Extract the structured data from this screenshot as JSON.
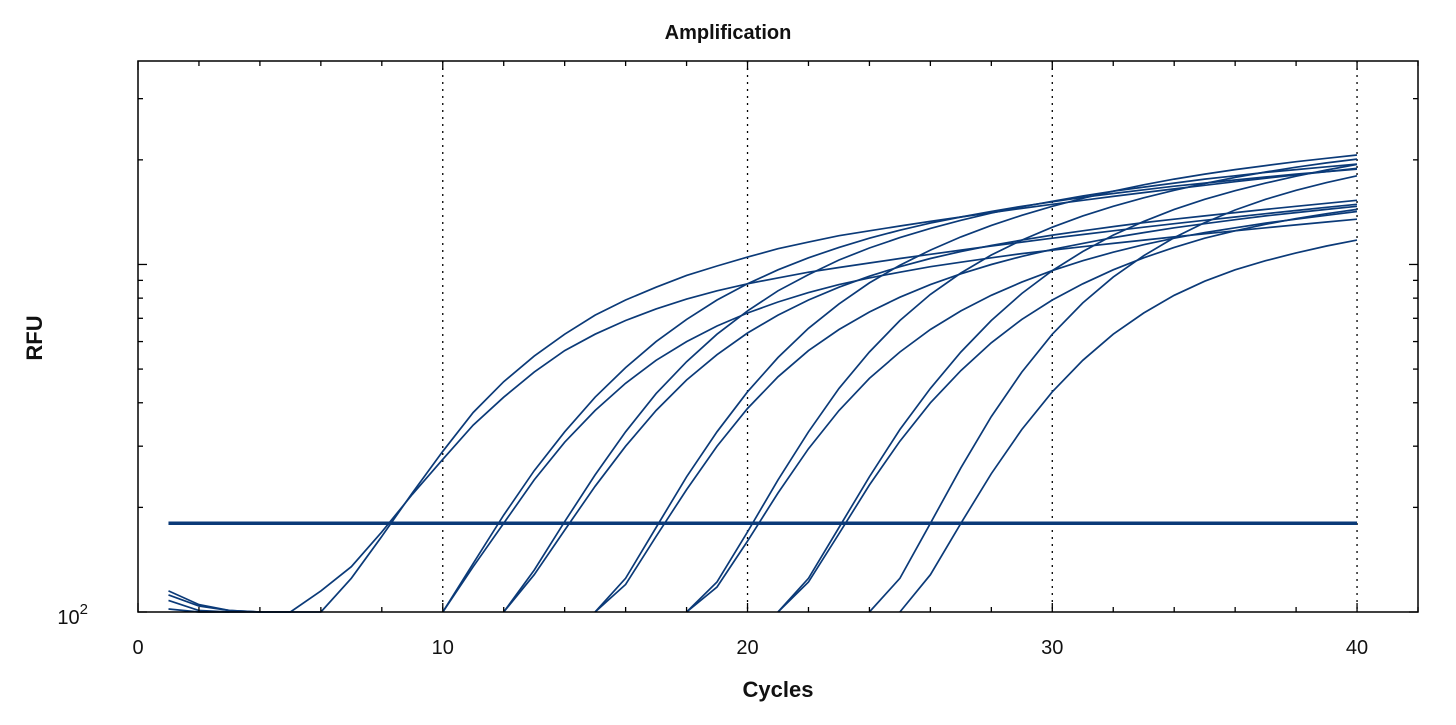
{
  "chart_data": {
    "type": "line",
    "title": "Amplification",
    "xlabel": "Cycles",
    "ylabel": "RFU",
    "xlim": [
      0,
      42
    ],
    "ylim": [
      100,
      3850
    ],
    "y_scale": "log",
    "x_ticks": [
      0,
      10,
      20,
      30,
      40
    ],
    "x_tick_labels": [
      "0",
      "10",
      "20",
      "30",
      "40"
    ],
    "y_tick_label_base": "10",
    "y_tick_label_exp": "2",
    "vertical_grid": "dotted at 10, 20, 30, 40",
    "colors": {
      "curves": "#0b3a78",
      "threshold": "#0b3a78"
    },
    "threshold": {
      "value": 180,
      "x_range": [
        1,
        40
      ]
    },
    "series": [
      {
        "x": [
          1,
          2,
          3,
          4,
          5,
          6,
          7,
          8,
          9,
          10,
          11,
          12,
          13,
          14,
          15,
          16,
          17,
          18,
          19,
          20,
          21,
          22,
          23,
          24,
          25,
          26,
          27,
          28,
          29,
          30,
          31,
          32,
          33,
          34,
          35,
          36,
          37,
          38,
          39,
          40
        ],
        "values": [
          115,
          105,
          101,
          100,
          100,
          115,
          135,
          170,
          218,
          275,
          345,
          415,
          490,
          565,
          630,
          690,
          745,
          795,
          840,
          880,
          915,
          950,
          980,
          1010,
          1040,
          1070,
          1100,
          1130,
          1160,
          1190,
          1220,
          1250,
          1280,
          1310,
          1340,
          1370,
          1400,
          1430,
          1460,
          1490
        ]
      },
      {
        "x": [
          1,
          2,
          3,
          4,
          5,
          6,
          7,
          8,
          9,
          10,
          11,
          12,
          13,
          14,
          15,
          16,
          17,
          18,
          19,
          20,
          21,
          22,
          23,
          24,
          25,
          26,
          27,
          28,
          29,
          30,
          31,
          32,
          33,
          34,
          35,
          36,
          37,
          38,
          39,
          40
        ],
        "values": [
          112,
          104,
          101,
          100,
          100,
          100,
          125,
          165,
          220,
          290,
          375,
          460,
          545,
          630,
          715,
          790,
          860,
          930,
          990,
          1050,
          1110,
          1160,
          1210,
          1250,
          1290,
          1330,
          1370,
          1410,
          1450,
          1490,
          1530,
          1570,
          1610,
          1650,
          1690,
          1730,
          1770,
          1810,
          1850,
          1890
        ]
      },
      {
        "x": [
          10,
          11,
          12,
          13,
          14,
          15,
          16,
          17,
          18,
          19,
          20,
          21,
          22,
          23,
          24,
          25,
          26,
          27,
          28,
          29,
          30,
          31,
          32,
          33,
          34,
          35,
          36,
          37,
          38,
          39,
          40
        ],
        "values": [
          100,
          138,
          190,
          255,
          330,
          415,
          505,
          600,
          695,
          790,
          880,
          965,
          1045,
          1120,
          1190,
          1255,
          1315,
          1370,
          1420,
          1470,
          1515,
          1560,
          1600,
          1640,
          1680,
          1715,
          1750,
          1785,
          1820,
          1850,
          1880
        ]
      },
      {
        "x": [
          10,
          11,
          12,
          13,
          14,
          15,
          16,
          17,
          18,
          19,
          20,
          21,
          22,
          23,
          24,
          25,
          26,
          27,
          28,
          29,
          30,
          31,
          32,
          33,
          34,
          35,
          36,
          37,
          38,
          39,
          40
        ],
        "values": [
          100,
          135,
          180,
          240,
          308,
          380,
          455,
          530,
          600,
          665,
          725,
          780,
          830,
          875,
          915,
          950,
          985,
          1015,
          1045,
          1075,
          1100,
          1125,
          1150,
          1175,
          1200,
          1225,
          1250,
          1275,
          1300,
          1325,
          1350
        ]
      },
      {
        "x": [
          12,
          13,
          14,
          15,
          16,
          17,
          18,
          19,
          20,
          21,
          22,
          23,
          24,
          25,
          26,
          27,
          28,
          29,
          30,
          31,
          32,
          33,
          34,
          35,
          36,
          37,
          38,
          39,
          40
        ],
        "values": [
          100,
          132,
          182,
          248,
          330,
          425,
          525,
          630,
          735,
          840,
          935,
          1030,
          1115,
          1195,
          1270,
          1340,
          1405,
          1465,
          1520,
          1575,
          1625,
          1670,
          1715,
          1760,
          1800,
          1840,
          1875,
          1910,
          1945
        ]
      },
      {
        "x": [
          12,
          13,
          14,
          15,
          16,
          17,
          18,
          19,
          20,
          21,
          22,
          23,
          24,
          25,
          26,
          27,
          28,
          29,
          30,
          31,
          32,
          33,
          34,
          35,
          36,
          37,
          38,
          39,
          40
        ],
        "values": [
          100,
          128,
          172,
          230,
          300,
          380,
          465,
          550,
          635,
          715,
          790,
          860,
          925,
          985,
          1040,
          1090,
          1135,
          1175,
          1215,
          1250,
          1285,
          1320,
          1350,
          1380,
          1410,
          1440,
          1470,
          1500,
          1530
        ]
      },
      {
        "x": [
          15,
          16,
          17,
          18,
          19,
          20,
          21,
          22,
          23,
          24,
          25,
          26,
          27,
          28,
          29,
          30,
          31,
          32,
          33,
          34,
          35,
          36,
          37,
          38,
          39,
          40
        ],
        "values": [
          100,
          125,
          175,
          245,
          330,
          430,
          540,
          655,
          770,
          885,
          995,
          1100,
          1200,
          1295,
          1385,
          1470,
          1550,
          1625,
          1695,
          1760,
          1820,
          1875,
          1925,
          1975,
          2020,
          2065
        ]
      },
      {
        "x": [
          15,
          16,
          17,
          18,
          19,
          20,
          21,
          22,
          23,
          24,
          25,
          26,
          27,
          28,
          29,
          30,
          31,
          32,
          33,
          34,
          35,
          36,
          37,
          38,
          39,
          40
        ],
        "values": [
          100,
          120,
          165,
          225,
          300,
          385,
          475,
          565,
          650,
          730,
          805,
          875,
          940,
          1000,
          1055,
          1105,
          1150,
          1195,
          1235,
          1275,
          1310,
          1345,
          1380,
          1410,
          1440,
          1470
        ]
      },
      {
        "x": [
          18,
          19,
          20,
          21,
          22,
          23,
          24,
          25,
          26,
          27,
          28,
          29,
          30,
          31,
          32,
          33,
          34,
          35,
          36,
          37,
          38,
          39,
          40
        ],
        "values": [
          100,
          122,
          170,
          240,
          330,
          440,
          560,
          690,
          820,
          945,
          1065,
          1175,
          1280,
          1380,
          1470,
          1555,
          1635,
          1710,
          1780,
          1845,
          1905,
          1960,
          2010
        ]
      },
      {
        "x": [
          18,
          19,
          20,
          21,
          22,
          23,
          24,
          25,
          26,
          27,
          28,
          29,
          30,
          31,
          32,
          33,
          34,
          35,
          36,
          37,
          38,
          39,
          40
        ],
        "values": [
          100,
          118,
          160,
          220,
          295,
          380,
          470,
          560,
          650,
          735,
          815,
          890,
          960,
          1025,
          1085,
          1140,
          1190,
          1235,
          1275,
          1315,
          1350,
          1385,
          1420
        ]
      },
      {
        "x": [
          21,
          22,
          23,
          24,
          25,
          26,
          27,
          28,
          29,
          30,
          31,
          32,
          33,
          34,
          35,
          36,
          37,
          38,
          39,
          40
        ],
        "values": [
          100,
          125,
          175,
          245,
          335,
          440,
          560,
          690,
          825,
          960,
          1090,
          1215,
          1330,
          1440,
          1540,
          1630,
          1715,
          1795,
          1870,
          1940
        ]
      },
      {
        "x": [
          21,
          22,
          23,
          24,
          25,
          26,
          27,
          28,
          29,
          30,
          31,
          32,
          33,
          34,
          35,
          36,
          37,
          38,
          39,
          40
        ],
        "values": [
          100,
          122,
          168,
          232,
          310,
          400,
          495,
          595,
          695,
          790,
          880,
          965,
          1045,
          1120,
          1190,
          1250,
          1305,
          1355,
          1400,
          1440
        ]
      },
      {
        "x": [
          24,
          25,
          26,
          27,
          28,
          29,
          30,
          31,
          32,
          33,
          34,
          35,
          36,
          37,
          38,
          39,
          40
        ],
        "values": [
          100,
          125,
          180,
          260,
          365,
          490,
          630,
          775,
          920,
          1060,
          1195,
          1320,
          1435,
          1540,
          1635,
          1720,
          1800
        ]
      },
      {
        "x": [
          25,
          26,
          27,
          28,
          29,
          30,
          31,
          32,
          33,
          34,
          35,
          36,
          37,
          38,
          39,
          40
        ],
        "values": [
          100,
          128,
          180,
          250,
          335,
          430,
          530,
          630,
          725,
          815,
          895,
          965,
          1025,
          1080,
          1130,
          1175
        ]
      },
      {
        "x": [
          1,
          2,
          3,
          4
        ],
        "values": [
          108,
          101,
          100,
          100
        ]
      },
      {
        "x": [
          1,
          2,
          3
        ],
        "values": [
          102,
          100,
          100
        ]
      }
    ]
  }
}
